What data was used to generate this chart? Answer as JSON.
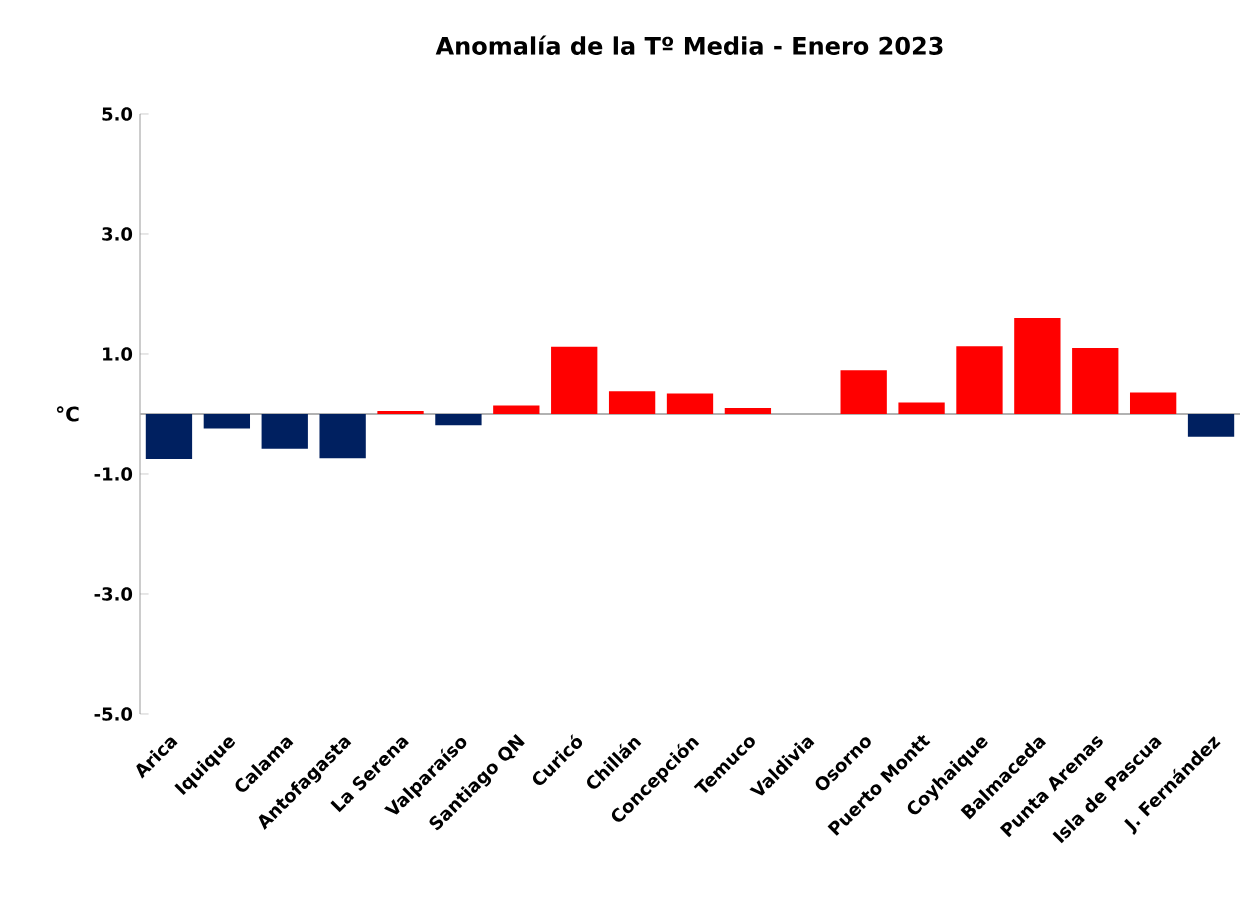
{
  "chart_data": {
    "type": "bar",
    "title": "Anomalía de la Tº Media - Enero 2023",
    "ylabel": "°C",
    "categories": [
      "Arica",
      "Iquique",
      "Calama",
      "Antofagasta",
      "La Serena",
      "Valparaíso",
      "Santiago QN",
      "Curicó",
      "Chillán",
      "Concepción",
      "Temuco",
      "Valdivia",
      "Osorno",
      "Puerto Montt",
      "Coyhaique",
      "Balmaceda",
      "Punta Arenas",
      "Isla de Pascua",
      "J. Fernández"
    ],
    "values": [
      -0.75,
      -0.24,
      -0.58,
      -0.74,
      0.05,
      -0.19,
      0.14,
      1.12,
      0.38,
      0.34,
      0.1,
      0.0,
      0.73,
      0.19,
      1.13,
      1.6,
      1.1,
      0.36,
      -0.38
    ],
    "colors": [
      "#002060",
      "#002060",
      "#002060",
      "#002060",
      "#ff0000",
      "#002060",
      "#ff0000",
      "#ff0000",
      "#ff0000",
      "#ff0000",
      "#ff0000",
      "#ff0000",
      "#ff0000",
      "#ff0000",
      "#ff0000",
      "#ff0000",
      "#ff0000",
      "#ff0000",
      "#002060"
    ],
    "ylim": [
      -5,
      5
    ],
    "yticks": [
      {
        "value": -5,
        "label": "-5.0"
      },
      {
        "value": -3,
        "label": "-3.0"
      },
      {
        "value": -1,
        "label": "-1.0"
      },
      {
        "value": 1,
        "label": "1.0"
      },
      {
        "value": 3,
        "label": "3.0"
      },
      {
        "value": 5,
        "label": "5.0"
      }
    ]
  }
}
